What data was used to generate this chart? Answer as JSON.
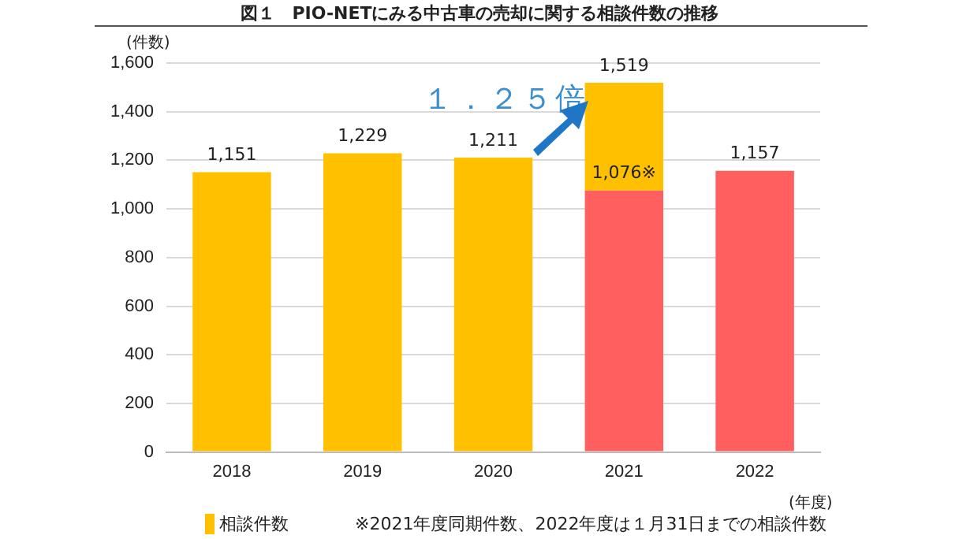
{
  "chart_data": {
    "type": "bar",
    "title": "図１　PIO-NETにみる中古車の売却に関する相談件数の推移",
    "ylabel": "(件数)",
    "xlabel": "(年度)",
    "categories": [
      "2018",
      "2019",
      "2020",
      "2021",
      "2022"
    ],
    "stacked": true,
    "series": [
      {
        "color": "#ff5f5f",
        "values": [
          null,
          null,
          null,
          1076,
          1157
        ],
        "value_labels": [
          null,
          null,
          null,
          "1,076※",
          "1,157"
        ]
      },
      {
        "name": "相談件数",
        "color": "#ffc000",
        "values": [
          1151,
          1229,
          1211,
          443,
          null
        ],
        "value_labels": [
          "1,151",
          "1,229",
          "1,211",
          null,
          null
        ]
      }
    ],
    "totals": [
      null,
      null,
      null,
      "1,519",
      null
    ],
    "ylim": [
      0,
      1600
    ],
    "yticks": [
      0,
      {
        "value": 200,
        "label": "200"
      },
      {
        "value": 400,
        "label": "400"
      },
      {
        "value": 600,
        "label": "600"
      },
      {
        "value": 800,
        "label": "800"
      },
      {
        "value": 1000,
        "label": "1,000"
      },
      {
        "value": 1200,
        "label": "1,200"
      },
      {
        "value": 1400,
        "label": "1,400"
      },
      {
        "value": 1600,
        "label": "1,600"
      }
    ],
    "grid": "y",
    "legend": "bottom left",
    "annotations": [
      "１．２５倍",
      "※2021年度同期件数、2022年度は１月31日までの相談件数"
    ]
  }
}
